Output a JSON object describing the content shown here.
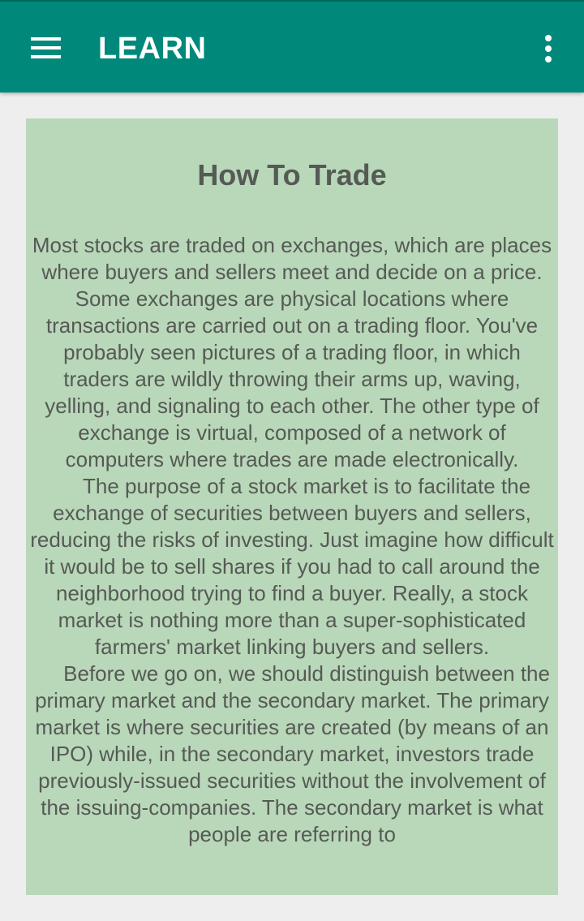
{
  "app_bar": {
    "title": "LEARN",
    "menu_icon": "hamburger-menu-icon",
    "overflow_icon": "more-vertical-icon",
    "color": "#00897b"
  },
  "article": {
    "title": "How To Trade",
    "background": "#b9d7b9",
    "paragraphs": [
      "Most stocks are traded on exchanges, which are places where buyers and sellers meet and decide on a price. Some exchanges are physical locations where transactions are carried out on a trading floor. You've probably seen pictures of a trading floor, in which traders are wildly throwing their arms up, waving, yelling, and signaling to each other. The other type of exchange is virtual, composed of a network of computers where trades are made electronically.",
      "The purpose of a stock market is to facilitate the exchange of securities between buyers and sellers, reducing the risks of investing. Just imagine how difficult it would be to sell shares if you had to call around the neighborhood trying to find a buyer. Really, a stock market is nothing more than a super-sophisticated farmers' market linking buyers and sellers.",
      "Before we go on, we should distinguish between the primary market and the secondary market. The primary market is where securities are created (by means of an IPO) while, in the secondary market, investors trade previously-issued securities without the involvement of the issuing-companies. The secondary market is what people are referring to"
    ]
  }
}
